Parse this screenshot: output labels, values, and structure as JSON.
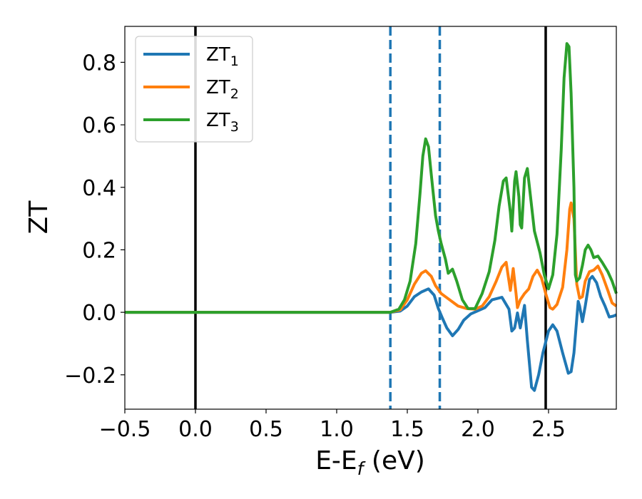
{
  "chart_data": {
    "type": "line",
    "title": "",
    "xlabel": "E-E",
    "xlabel_sub": "f",
    "xlabel_unit": " (eV)",
    "ylabel": "ZT",
    "xlim": [
      -0.5,
      2.98
    ],
    "ylim": [
      -0.31,
      0.915
    ],
    "xticks": [
      -0.5,
      0.0,
      0.5,
      1.0,
      1.5,
      2.0,
      2.5
    ],
    "xtick_labels": [
      "−0.5",
      "0.0",
      "0.5",
      "1.0",
      "1.5",
      "2.0",
      "2.5"
    ],
    "yticks": [
      -0.2,
      0.0,
      0.2,
      0.4,
      0.6,
      0.8
    ],
    "ytick_labels": [
      "−0.2",
      "0.0",
      "0.2",
      "0.4",
      "0.6",
      "0.8"
    ],
    "grid": false,
    "legend_position": "top-left",
    "vertical_lines": [
      {
        "x": 0.0,
        "style": "solid",
        "color": "#000000"
      },
      {
        "x": 2.48,
        "style": "solid",
        "color": "#000000"
      },
      {
        "x": 1.38,
        "style": "dashed",
        "color": "#1f77b4"
      },
      {
        "x": 1.73,
        "style": "dashed",
        "color": "#1f77b4"
      }
    ],
    "series": [
      {
        "name": "ZT",
        "name_sub": "1",
        "color": "#1f77b4",
        "points": [
          [
            -0.5,
            0
          ],
          [
            1.38,
            0
          ],
          [
            1.45,
            0.004
          ],
          [
            1.5,
            0.02
          ],
          [
            1.55,
            0.05
          ],
          [
            1.6,
            0.065
          ],
          [
            1.65,
            0.075
          ],
          [
            1.69,
            0.055
          ],
          [
            1.72,
            0.012
          ],
          [
            1.75,
            -0.02
          ],
          [
            1.78,
            -0.05
          ],
          [
            1.82,
            -0.075
          ],
          [
            1.86,
            -0.055
          ],
          [
            1.9,
            -0.025
          ],
          [
            1.95,
            -0.005
          ],
          [
            2.0,
            0.005
          ],
          [
            2.05,
            0.015
          ],
          [
            2.1,
            0.04
          ],
          [
            2.17,
            0.048
          ],
          [
            2.22,
            0.01
          ],
          [
            2.24,
            -0.06
          ],
          [
            2.26,
            -0.05
          ],
          [
            2.28,
            -0.002
          ],
          [
            2.3,
            -0.05
          ],
          [
            2.33,
            0.022
          ],
          [
            2.35,
            -0.09
          ],
          [
            2.38,
            -0.24
          ],
          [
            2.4,
            -0.25
          ],
          [
            2.43,
            -0.2
          ],
          [
            2.46,
            -0.13
          ],
          [
            2.5,
            -0.06
          ],
          [
            2.53,
            -0.04
          ],
          [
            2.56,
            -0.06
          ],
          [
            2.6,
            -0.13
          ],
          [
            2.64,
            -0.195
          ],
          [
            2.66,
            -0.19
          ],
          [
            2.68,
            -0.13
          ],
          [
            2.7,
            -0.02
          ],
          [
            2.71,
            0.035
          ],
          [
            2.72,
            0.02
          ],
          [
            2.74,
            -0.03
          ],
          [
            2.76,
            0.02
          ],
          [
            2.79,
            0.105
          ],
          [
            2.81,
            0.115
          ],
          [
            2.84,
            0.095
          ],
          [
            2.87,
            0.05
          ],
          [
            2.9,
            0.02
          ],
          [
            2.93,
            -0.015
          ],
          [
            2.96,
            -0.012
          ],
          [
            2.98,
            -0.008
          ]
        ]
      },
      {
        "name": "ZT",
        "name_sub": "2",
        "color": "#ff7f0e",
        "points": [
          [
            -0.5,
            0
          ],
          [
            1.38,
            0
          ],
          [
            1.45,
            0.008
          ],
          [
            1.5,
            0.04
          ],
          [
            1.55,
            0.09
          ],
          [
            1.6,
            0.125
          ],
          [
            1.63,
            0.133
          ],
          [
            1.67,
            0.115
          ],
          [
            1.7,
            0.085
          ],
          [
            1.74,
            0.06
          ],
          [
            1.8,
            0.04
          ],
          [
            1.86,
            0.02
          ],
          [
            1.92,
            0.012
          ],
          [
            1.98,
            0.01
          ],
          [
            2.03,
            0.02
          ],
          [
            2.08,
            0.05
          ],
          [
            2.13,
            0.1
          ],
          [
            2.17,
            0.145
          ],
          [
            2.2,
            0.16
          ],
          [
            2.22,
            0.1
          ],
          [
            2.23,
            0.07
          ],
          [
            2.25,
            0.14
          ],
          [
            2.27,
            0.06
          ],
          [
            2.28,
            0.015
          ],
          [
            2.3,
            0.04
          ],
          [
            2.33,
            0.06
          ],
          [
            2.36,
            0.075
          ],
          [
            2.39,
            0.115
          ],
          [
            2.42,
            0.135
          ],
          [
            2.45,
            0.11
          ],
          [
            2.48,
            0.06
          ],
          [
            2.51,
            0.015
          ],
          [
            2.53,
            0.01
          ],
          [
            2.56,
            0.025
          ],
          [
            2.6,
            0.08
          ],
          [
            2.63,
            0.2
          ],
          [
            2.65,
            0.33
          ],
          [
            2.66,
            0.35
          ],
          [
            2.68,
            0.3
          ],
          [
            2.7,
            0.09
          ],
          [
            2.72,
            0.045
          ],
          [
            2.74,
            0.05
          ],
          [
            2.76,
            0.1
          ],
          [
            2.79,
            0.13
          ],
          [
            2.82,
            0.135
          ],
          [
            2.85,
            0.148
          ],
          [
            2.88,
            0.12
          ],
          [
            2.92,
            0.07
          ],
          [
            2.95,
            0.03
          ],
          [
            2.98,
            0.02
          ]
        ]
      },
      {
        "name": "ZT",
        "name_sub": "3",
        "color": "#2ca02c",
        "points": [
          [
            -0.5,
            0
          ],
          [
            1.38,
            0
          ],
          [
            1.44,
            0.01
          ],
          [
            1.48,
            0.04
          ],
          [
            1.52,
            0.1
          ],
          [
            1.56,
            0.22
          ],
          [
            1.59,
            0.38
          ],
          [
            1.61,
            0.5
          ],
          [
            1.63,
            0.555
          ],
          [
            1.65,
            0.53
          ],
          [
            1.67,
            0.44
          ],
          [
            1.7,
            0.31
          ],
          [
            1.72,
            0.26
          ],
          [
            1.74,
            0.22
          ],
          [
            1.77,
            0.17
          ],
          [
            1.79,
            0.125
          ],
          [
            1.82,
            0.138
          ],
          [
            1.85,
            0.1
          ],
          [
            1.89,
            0.04
          ],
          [
            1.93,
            0.012
          ],
          [
            1.98,
            0.012
          ],
          [
            2.03,
            0.06
          ],
          [
            2.08,
            0.13
          ],
          [
            2.12,
            0.23
          ],
          [
            2.15,
            0.34
          ],
          [
            2.18,
            0.42
          ],
          [
            2.2,
            0.43
          ],
          [
            2.23,
            0.32
          ],
          [
            2.24,
            0.26
          ],
          [
            2.26,
            0.42
          ],
          [
            2.27,
            0.45
          ],
          [
            2.29,
            0.37
          ],
          [
            2.3,
            0.28
          ],
          [
            2.31,
            0.27
          ],
          [
            2.33,
            0.43
          ],
          [
            2.35,
            0.46
          ],
          [
            2.37,
            0.38
          ],
          [
            2.4,
            0.26
          ],
          [
            2.44,
            0.19
          ],
          [
            2.47,
            0.12
          ],
          [
            2.5,
            0.075
          ],
          [
            2.53,
            0.12
          ],
          [
            2.56,
            0.25
          ],
          [
            2.59,
            0.52
          ],
          [
            2.61,
            0.75
          ],
          [
            2.63,
            0.86
          ],
          [
            2.645,
            0.85
          ],
          [
            2.66,
            0.7
          ],
          [
            2.68,
            0.4
          ],
          [
            2.69,
            0.12
          ],
          [
            2.7,
            0.1
          ],
          [
            2.72,
            0.11
          ],
          [
            2.74,
            0.15
          ],
          [
            2.76,
            0.2
          ],
          [
            2.78,
            0.215
          ],
          [
            2.8,
            0.2
          ],
          [
            2.82,
            0.175
          ],
          [
            2.85,
            0.18
          ],
          [
            2.88,
            0.16
          ],
          [
            2.92,
            0.13
          ],
          [
            2.95,
            0.1
          ],
          [
            2.98,
            0.06
          ]
        ]
      }
    ]
  }
}
